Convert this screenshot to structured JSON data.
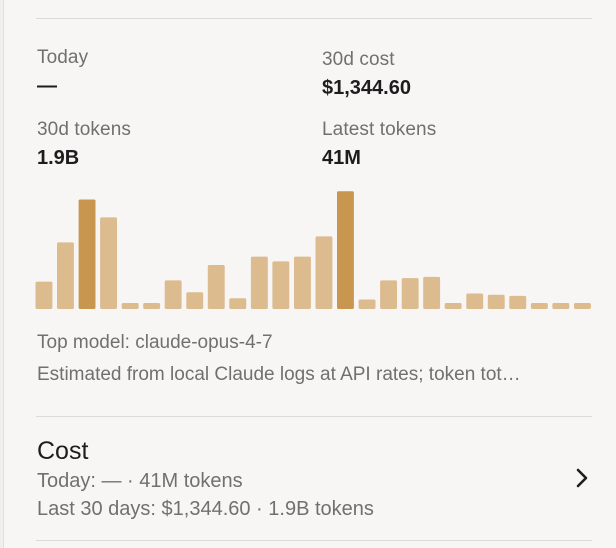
{
  "stats": {
    "today": {
      "label": "Today",
      "value": "—"
    },
    "cost_30d": {
      "label": "30d cost",
      "value": "$1,344.60"
    },
    "tokens_30d": {
      "label": "30d tokens",
      "value": "1.9B"
    },
    "latest_tokens": {
      "label": "Latest tokens",
      "value": "41M"
    }
  },
  "chart_data": {
    "type": "bar",
    "values": [
      0.23,
      0.56,
      0.92,
      0.77,
      0.05,
      0.05,
      0.24,
      0.14,
      0.37,
      0.09,
      0.44,
      0.4,
      0.44,
      0.61,
      0.99,
      0.08,
      0.24,
      0.26,
      0.27,
      0.05,
      0.13,
      0.12,
      0.11,
      0.05,
      0.05,
      0.05
    ],
    "highlight_indices": [
      2,
      14
    ],
    "colors": {
      "normal": "#dcbb8e",
      "highlight": "#c8964f"
    }
  },
  "notes": {
    "top_model": "Top model: claude-opus-4-7",
    "estimate": "Estimated from local Claude logs at API rates; token tot…"
  },
  "cost_section": {
    "title": "Cost",
    "today_line": "Today: — · 41M tokens",
    "month_line": "Last 30 days: $1,344.60 · 1.9B tokens",
    "chevron_icon": "chevron-right-icon"
  }
}
